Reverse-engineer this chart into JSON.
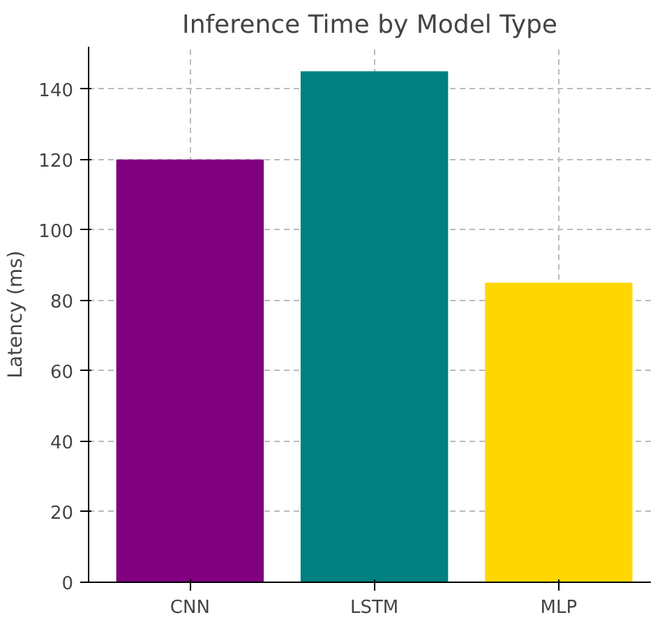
{
  "chart_data": {
    "type": "bar",
    "title": "Inference Time by Model Type",
    "ylabel": "Latency (ms)",
    "categories": [
      "CNN",
      "LSTM",
      "MLP"
    ],
    "values": [
      120,
      145,
      85
    ],
    "colors": [
      "#800080",
      "#008080",
      "#ffd700"
    ],
    "ylim": [
      0,
      152
    ],
    "yticks": [
      0,
      20,
      40,
      60,
      80,
      100,
      120,
      140
    ],
    "grid": true
  }
}
